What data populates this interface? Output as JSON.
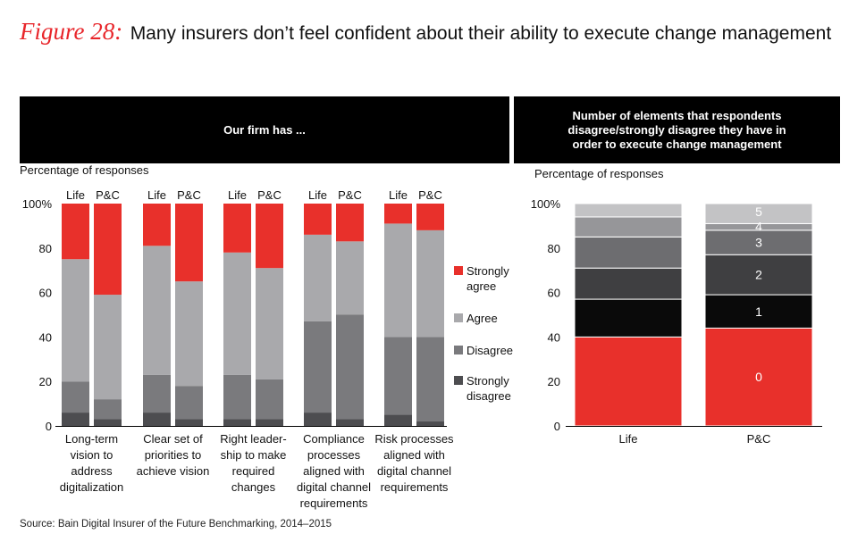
{
  "title": {
    "label": "Figure 28:",
    "text": "Many insurers don’t feel confident about their ability to execute change management"
  },
  "left_header": "Our firm has ...",
  "right_header": "Number of elements that respondents disagree/strongly disagree they have in order to execute change management",
  "left_ylabel": "Percentage of responses",
  "right_ylabel": "Percentage of responses",
  "source": "Source: Bain Digital Insurer of the Future Benchmarking, 2014–2015",
  "colors": {
    "strongly_agree": "#e8302b",
    "agree": "#a9a9ac",
    "disagree": "#7a7a7d",
    "strongly_disagree": "#4d4d50",
    "r0": "#e8302b",
    "r1": "#0a0a0a",
    "r2": "#3f3f41",
    "r3": "#6d6d70",
    "r4": "#969699",
    "r5": "#c3c3c5"
  },
  "chart_data": [
    {
      "type": "bar",
      "stacked": true,
      "title": "Our firm has ...",
      "ylabel": "Percentage of responses",
      "ylim": [
        0,
        100
      ],
      "yticks": [
        "0",
        "20",
        "40",
        "60",
        "80",
        "100%"
      ],
      "bar_labels": [
        "Life",
        "P&C"
      ],
      "categories": [
        [
          "Long-term",
          "vision to",
          "address",
          "digitalization"
        ],
        [
          "Clear set of",
          "priorities to",
          "achieve vision"
        ],
        [
          "Right leader-",
          "ship to make",
          "required",
          "changes"
        ],
        [
          "Compliance",
          "processes",
          "aligned with",
          "digital channel",
          "requirements"
        ],
        [
          "Risk processes",
          "aligned with",
          "digital channel",
          "requirements"
        ]
      ],
      "legend": [
        {
          "key": "strongly_agree",
          "lines": [
            "Strongly",
            "agree"
          ]
        },
        {
          "key": "agree",
          "lines": [
            "Agree"
          ]
        },
        {
          "key": "disagree",
          "lines": [
            "Disagree"
          ]
        },
        {
          "key": "strongly_disagree",
          "lines": [
            "Strongly",
            "disagree"
          ]
        }
      ],
      "series_order": [
        "strongly_disagree",
        "disagree",
        "agree",
        "strongly_agree"
      ],
      "groups": [
        {
          "Life": {
            "strongly_disagree": 6,
            "disagree": 14,
            "agree": 55,
            "strongly_agree": 25
          },
          "P&C": {
            "strongly_disagree": 3,
            "disagree": 9,
            "agree": 47,
            "strongly_agree": 41
          }
        },
        {
          "Life": {
            "strongly_disagree": 6,
            "disagree": 17,
            "agree": 58,
            "strongly_agree": 19
          },
          "P&C": {
            "strongly_disagree": 3,
            "disagree": 15,
            "agree": 47,
            "strongly_agree": 35
          }
        },
        {
          "Life": {
            "strongly_disagree": 3,
            "disagree": 20,
            "agree": 55,
            "strongly_agree": 22
          },
          "P&C": {
            "strongly_disagree": 3,
            "disagree": 18,
            "agree": 50,
            "strongly_agree": 29
          }
        },
        {
          "Life": {
            "strongly_disagree": 6,
            "disagree": 41,
            "agree": 39,
            "strongly_agree": 14
          },
          "P&C": {
            "strongly_disagree": 3,
            "disagree": 47,
            "agree": 33,
            "strongly_agree": 17
          }
        },
        {
          "Life": {
            "strongly_disagree": 5,
            "disagree": 35,
            "agree": 51,
            "strongly_agree": 9
          },
          "P&C": {
            "strongly_disagree": 2,
            "disagree": 38,
            "agree": 48,
            "strongly_agree": 12
          }
        }
      ]
    },
    {
      "type": "bar",
      "stacked": true,
      "title": "Number of elements that respondents disagree/strongly disagree they have in order to execute change management",
      "ylabel": "Percentage of responses",
      "ylim": [
        0,
        100
      ],
      "yticks": [
        "0",
        "20",
        "40",
        "60",
        "80",
        "100%"
      ],
      "categories": [
        "Life",
        "P&C"
      ],
      "series": [
        {
          "name": "0",
          "values": [
            40,
            44
          ]
        },
        {
          "name": "1",
          "values": [
            17,
            15
          ]
        },
        {
          "name": "2",
          "values": [
            14,
            18
          ]
        },
        {
          "name": "3",
          "values": [
            14,
            11
          ]
        },
        {
          "name": "4",
          "values": [
            9,
            3
          ]
        },
        {
          "name": "5",
          "values": [
            6,
            9
          ]
        }
      ]
    }
  ]
}
